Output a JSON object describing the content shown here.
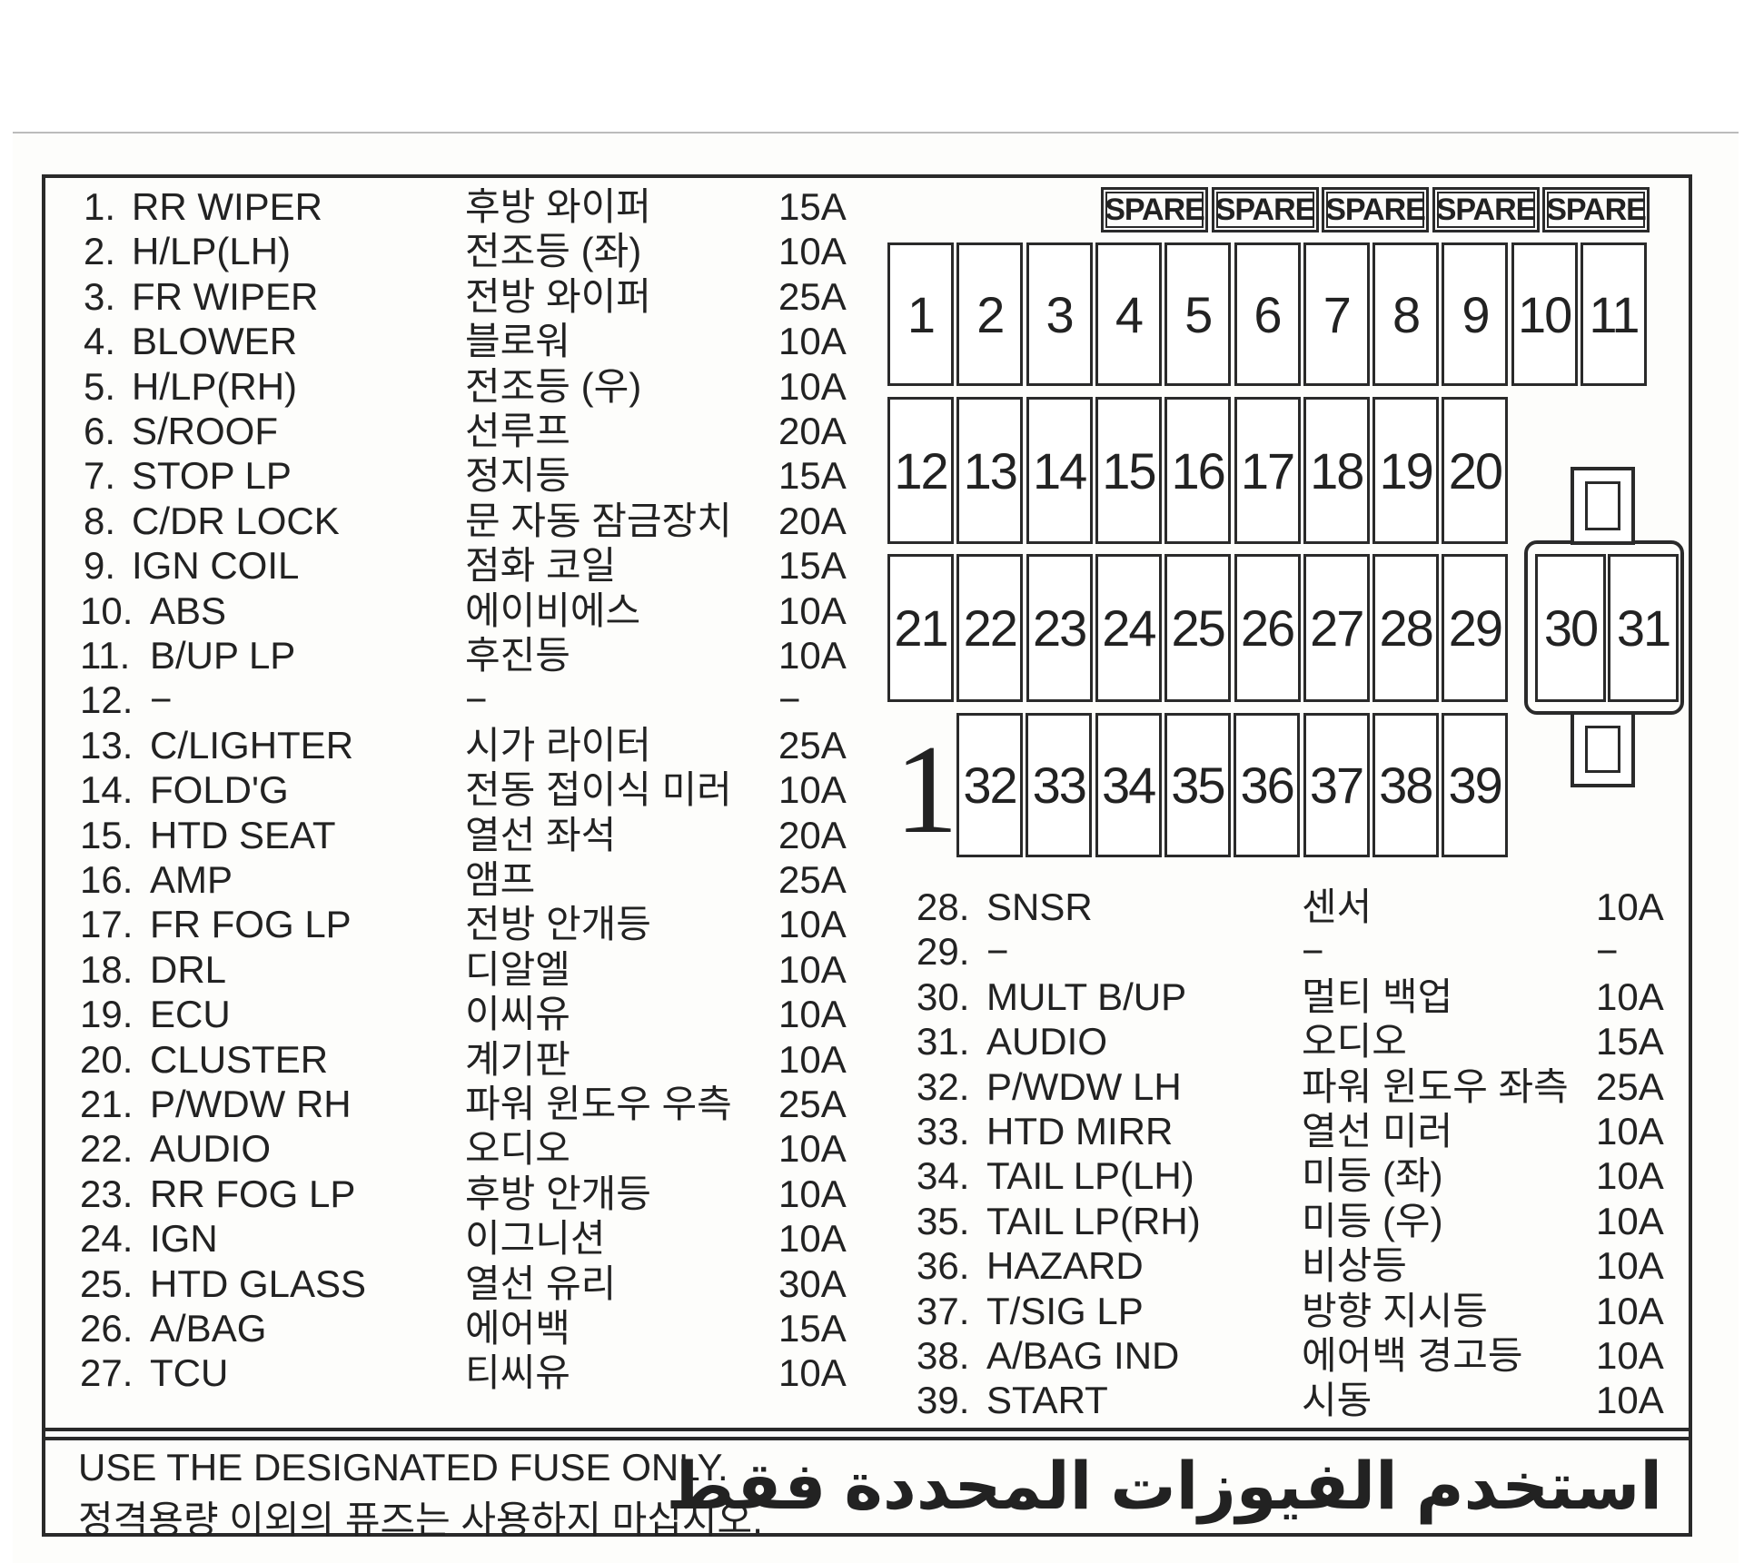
{
  "left_list": [
    {
      "no": "1.",
      "name": "RR  WIPER",
      "korean": "후방 와이퍼",
      "amp": "15A"
    },
    {
      "no": "2.",
      "name": "H/LP(LH)",
      "korean": "전조등 (좌)",
      "amp": "10A"
    },
    {
      "no": "3.",
      "name": "FR  WIPER",
      "korean": "전방 와이퍼",
      "amp": "25A"
    },
    {
      "no": "4.",
      "name": "BLOWER",
      "korean": "블로워",
      "amp": "10A"
    },
    {
      "no": "5.",
      "name": "H/LP(RH)",
      "korean": "전조등 (우)",
      "amp": "10A"
    },
    {
      "no": "6.",
      "name": "S/ROOF",
      "korean": "선루프",
      "amp": "20A"
    },
    {
      "no": "7.",
      "name": "STOP  LP",
      "korean": "정지등",
      "amp": "15A"
    },
    {
      "no": "8.",
      "name": "C/DR  LOCK",
      "korean": "문 자동 잠금장치",
      "amp": "20A"
    },
    {
      "no": "9.",
      "name": "IGN  COIL",
      "korean": "점화 코일",
      "amp": "15A"
    },
    {
      "no": "10.",
      "name": "ABS",
      "korean": "에이비에스",
      "amp": "10A"
    },
    {
      "no": "11.",
      "name": "B/UP  LP",
      "korean": "후진등",
      "amp": "10A"
    },
    {
      "no": "12.",
      "name": "   −",
      "korean": "   −",
      "amp": "  −"
    },
    {
      "no": "13.",
      "name": "C/LIGHTER",
      "korean": "시가 라이터",
      "amp": "25A"
    },
    {
      "no": "14.",
      "name": "FOLD'G",
      "korean": "전동 접이식 미러",
      "amp": "10A"
    },
    {
      "no": "15.",
      "name": "HTD  SEAT",
      "korean": "열선 좌석",
      "amp": "20A"
    },
    {
      "no": "16.",
      "name": "AMP",
      "korean": "앰프",
      "amp": "25A"
    },
    {
      "no": "17.",
      "name": "FR  FOG  LP",
      "korean": "전방 안개등",
      "amp": "10A"
    },
    {
      "no": "18.",
      "name": "DRL",
      "korean": "디알엘",
      "amp": "10A"
    },
    {
      "no": "19.",
      "name": "ECU",
      "korean": "이씨유",
      "amp": "10A"
    },
    {
      "no": "20.",
      "name": "CLUSTER",
      "korean": "계기판",
      "amp": "10A"
    },
    {
      "no": "21.",
      "name": "P/WDW  RH",
      "korean": "파워 윈도우 우측",
      "amp": "25A"
    },
    {
      "no": "22.",
      "name": "AUDIO",
      "korean": "오디오",
      "amp": "10A"
    },
    {
      "no": "23.",
      "name": "RR  FOG  LP",
      "korean": "후방 안개등",
      "amp": "10A"
    },
    {
      "no": "24.",
      "name": "IGN",
      "korean": "이그니션",
      "amp": "10A"
    },
    {
      "no": "25.",
      "name": "HTD  GLASS",
      "korean": "열선 유리",
      "amp": "30A"
    },
    {
      "no": "26.",
      "name": "A/BAG",
      "korean": "에어백",
      "amp": "15A"
    },
    {
      "no": "27.",
      "name": "TCU",
      "korean": "티씨유",
      "amp": "10A"
    }
  ],
  "right_list": [
    {
      "no": "28.",
      "name": "SNSR",
      "korean": "센서",
      "amp": "10A"
    },
    {
      "no": "29.",
      "name": "  −",
      "korean": "  −",
      "amp": " −"
    },
    {
      "no": "30.",
      "name": "MULT  B/UP",
      "korean": "멀티 백업",
      "amp": "10A"
    },
    {
      "no": "31.",
      "name": "AUDIO",
      "korean": "오디오",
      "amp": "15A"
    },
    {
      "no": "32.",
      "name": "P/WDW  LH",
      "korean": "파워 윈도우 좌측",
      "amp": "25A"
    },
    {
      "no": "33.",
      "name": "HTD  MIRR",
      "korean": "열선 미러",
      "amp": "10A"
    },
    {
      "no": "34.",
      "name": "TAIL  LP(LH)",
      "korean": "미등 (좌)",
      "amp": "10A"
    },
    {
      "no": "35.",
      "name": "TAIL  LP(RH)",
      "korean": "미등 (우)",
      "amp": "10A"
    },
    {
      "no": "36.",
      "name": "HAZARD",
      "korean": "비상등",
      "amp": "10A"
    },
    {
      "no": "37.",
      "name": "T/SIG  LP",
      "korean": "방향 지시등",
      "amp": "10A"
    },
    {
      "no": "38.",
      "name": "A/BAG  IND",
      "korean": "에어백 경고등",
      "amp": "10A"
    },
    {
      "no": "39.",
      "name": "START",
      "korean": "시동",
      "amp": "10A"
    }
  ],
  "diagram": {
    "spares": [
      "SPARE",
      "SPARE",
      "SPARE",
      "SPARE",
      "SPARE"
    ],
    "row1": [
      "1",
      "2",
      "3",
      "4",
      "5",
      "6",
      "7",
      "8",
      "9",
      "10",
      "11"
    ],
    "row2": [
      "12",
      "13",
      "14",
      "15",
      "16",
      "17",
      "18",
      "19",
      "20"
    ],
    "row3": [
      "21",
      "22",
      "23",
      "24",
      "25",
      "26",
      "27",
      "28",
      "29"
    ],
    "row4": [
      "32",
      "33",
      "34",
      "35",
      "36",
      "37",
      "38",
      "39"
    ],
    "relay": [
      "30",
      "31"
    ],
    "panel_marker": "1"
  },
  "notice": {
    "english": "USE  THE  DESIGNATED  FUSE  ONLY.",
    "korean": "정격용량  이외의  퓨즈는 사용하지 마십시오.",
    "arabic": "استخدم الفيوزات المحددة فقط"
  }
}
